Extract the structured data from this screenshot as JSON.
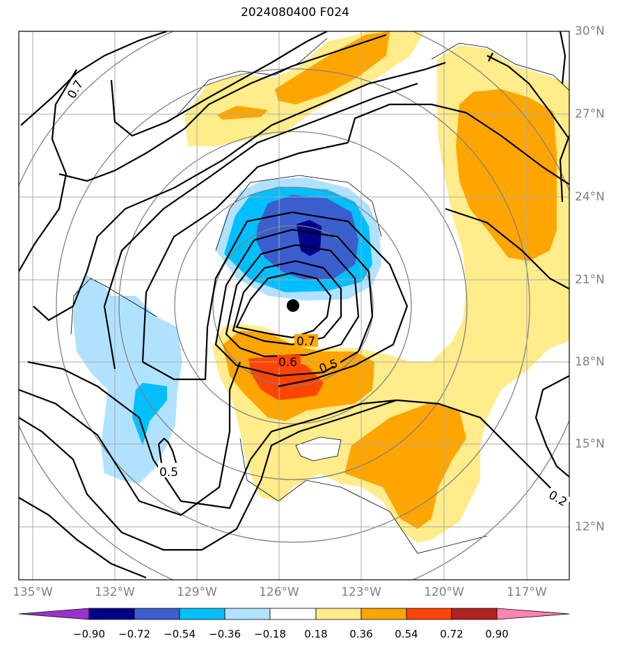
{
  "title": "2024080400 F024",
  "lat_ticks": [
    "30°N",
    "27°N",
    "24°N",
    "21°N",
    "18°N",
    "15°N",
    "12°N"
  ],
  "lon_ticks": [
    "135°W",
    "132°W",
    "129°W",
    "126°W",
    "123°W",
    "120°W",
    "117°W"
  ],
  "contour_labels": [
    "0.7",
    "0.7",
    "0.6",
    "0.5",
    "0.5",
    "0.2"
  ],
  "colorbar": {
    "tick_labels": [
      "−0.90",
      "−0.72",
      "−0.54",
      "−0.36",
      "−0.18",
      "0.18",
      "0.36",
      "0.54",
      "0.72",
      "0.90"
    ],
    "colors": [
      "#9932CC",
      "#00008B",
      "#3A5FCD",
      "#00BFFF",
      "#B0E2FF",
      "#FFFFFF",
      "#FFEC8B",
      "#FFA500",
      "#FF4500",
      "#B22222",
      "#FF83B4"
    ]
  },
  "center_marker": "black-dot"
}
